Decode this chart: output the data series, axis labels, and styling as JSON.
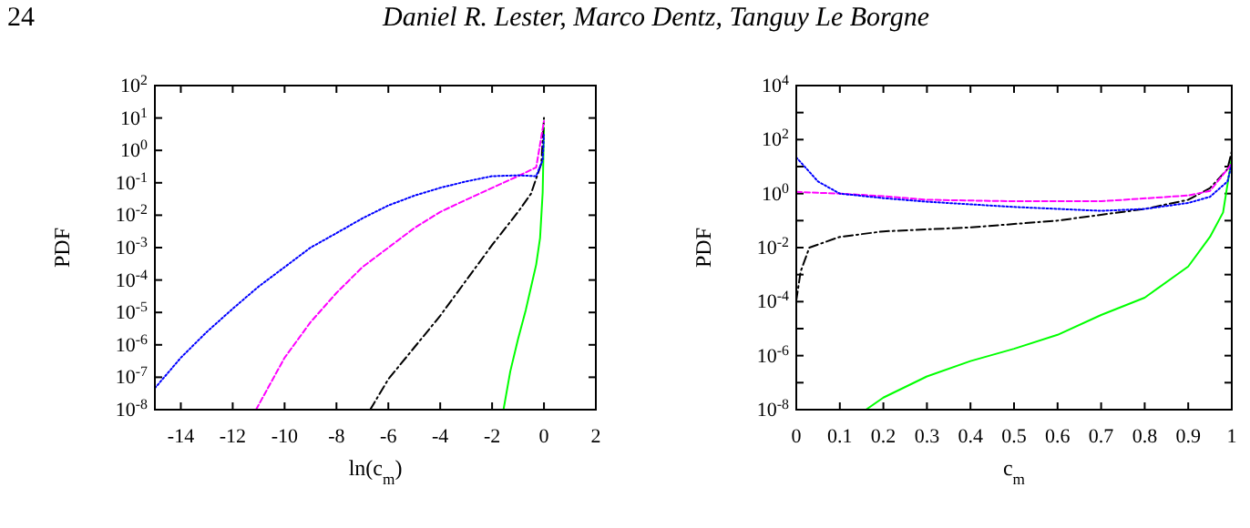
{
  "chart_data": [
    {
      "type": "line",
      "annotations": [
        "24",
        "Daniel R. Lester, Marco Dentz, Tanguy Le Borgne"
      ],
      "xlabel": "ln(c$_{m}$)",
      "ylabel": "PDF",
      "log": "y",
      "xlim": [
        -15,
        2
      ],
      "xticks": [
        -14,
        -12,
        -10,
        -8,
        -6,
        -4,
        -2,
        0,
        2
      ],
      "ylim": [
        1e-08,
        100
      ],
      "yticks": [
        {
          "value": 1e-08,
          "label": "10$^{-8}$"
        },
        {
          "value": 1e-07,
          "label": "10$^{-7}$"
        },
        {
          "value": 1e-06,
          "label": "10$^{-6}$"
        },
        {
          "value": 1e-05,
          "label": "10$^{-5}$"
        },
        {
          "value": 0.0001,
          "label": "10$^{-4}$"
        },
        {
          "value": 0.001,
          "label": "10$^{-3}$"
        },
        {
          "value": 0.01,
          "label": "10$^{-2}$"
        },
        {
          "value": 0.1,
          "label": "10$^{-1}$"
        },
        {
          "value": 1,
          "label": "10$^{0}$"
        },
        {
          "value": 10,
          "label": "10$^{1}$"
        },
        {
          "value": 100,
          "label": "10$^{2}$"
        }
      ],
      "series": [
        {
          "color": "#0000ff",
          "line_style": "dotted",
          "x": [
            -15,
            -14,
            -13,
            -12,
            -11,
            -10,
            -9,
            -8,
            -7,
            -6,
            -5,
            -4,
            -3,
            -2,
            -1,
            -0.3,
            -0.05,
            0
          ],
          "values": [
            4.6e-08,
            4e-07,
            2.5e-06,
            1.3e-05,
            6.3e-05,
            0.00025,
            0.001,
            0.0028,
            0.008,
            0.02,
            0.04,
            0.07,
            0.11,
            0.16,
            0.17,
            0.16,
            0.5,
            3
          ]
        },
        {
          "color": "#ff00ff",
          "line_style": "dashed",
          "x": [
            -11.1,
            -10,
            -9,
            -8,
            -7,
            -6,
            -5,
            -4,
            -3,
            -2,
            -1,
            -0.3,
            0
          ],
          "values": [
            1e-08,
            4e-07,
            5e-06,
            4e-05,
            0.00025,
            0.001,
            0.004,
            0.0126,
            0.03,
            0.07,
            0.16,
            0.3,
            8
          ]
        },
        {
          "color": "#000000",
          "line_style": "dashed",
          "x": [
            -6.7,
            -6,
            -4,
            -2,
            -1,
            -0.5,
            -0.1,
            0
          ],
          "values": [
            1e-08,
            8.7e-08,
            7.9e-06,
            0.0012,
            0.0126,
            0.046,
            0.4,
            10
          ]
        },
        {
          "color": "#00ff00",
          "line_style": "solid",
          "x": [
            -1.56,
            -1.3,
            -1,
            -0.7,
            -0.5,
            -0.3,
            -0.15,
            -0.05,
            0
          ],
          "values": [
            1e-08,
            1.5e-07,
            1.5e-06,
            1.2e-05,
            6e-05,
            0.0003,
            0.002,
            0.05,
            5
          ]
        }
      ]
    },
    {
      "type": "line",
      "xlabel": "c$_{m}$",
      "ylabel": "PDF",
      "log": "y",
      "xlim": [
        0,
        1
      ],
      "xticks": [
        0,
        0.1,
        0.2,
        0.3,
        0.4,
        0.5,
        0.6,
        0.7,
        0.8,
        0.9,
        1
      ],
      "ylim": [
        1e-08,
        10000
      ],
      "yticks": [
        {
          "value": 1e-08,
          "label": "10$^{-8}$"
        },
        {
          "value": 1e-07,
          "label": null
        },
        {
          "value": 1e-06,
          "label": "10$^{-6}$"
        },
        {
          "value": 1e-05,
          "label": null
        },
        {
          "value": 0.0001,
          "label": "10$^{-4}$"
        },
        {
          "value": 0.001,
          "label": null
        },
        {
          "value": 0.01,
          "label": "10$^{-2}$"
        },
        {
          "value": 0.1,
          "label": null
        },
        {
          "value": 1,
          "label": "10$^{0}$"
        },
        {
          "value": 10,
          "label": null
        },
        {
          "value": 100,
          "label": "10$^{2}$"
        },
        {
          "value": 1000,
          "label": null
        },
        {
          "value": 10000,
          "label": "10$^{4}$"
        }
      ],
      "series": [
        {
          "color": "#0000ff",
          "line_style": "dotted",
          "x": [
            0,
            0.05,
            0.1,
            0.2,
            0.3,
            0.5,
            0.7,
            0.8,
            0.9,
            0.95,
            0.99,
            1
          ],
          "values": [
            22,
            2.8,
            1,
            0.68,
            0.5,
            0.32,
            0.23,
            0.27,
            0.45,
            0.76,
            2.8,
            12.6
          ]
        },
        {
          "color": "#ff00ff",
          "line_style": "dashed",
          "x": [
            0,
            0.1,
            0.2,
            0.3,
            0.5,
            0.7,
            0.9,
            0.95,
            1
          ],
          "values": [
            1.15,
            1,
            0.8,
            0.59,
            0.52,
            0.52,
            0.85,
            1.26,
            12.6
          ]
        },
        {
          "color": "#000000",
          "line_style": "dashed",
          "x": [
            0,
            0.01,
            0.03,
            0.1,
            0.2,
            0.4,
            0.6,
            0.8,
            0.9,
            0.95,
            0.99,
            1
          ],
          "values": [
            0.00011,
            0.0013,
            0.01,
            0.025,
            0.04,
            0.056,
            0.1,
            0.27,
            0.59,
            1.6,
            8,
            37
          ]
        },
        {
          "color": "#00ff00",
          "line_style": "solid",
          "x": [
            0.16,
            0.2,
            0.3,
            0.4,
            0.5,
            0.6,
            0.7,
            0.8,
            0.9,
            0.95,
            0.98,
            1
          ],
          "values": [
            1e-08,
            2.8e-08,
            1.7e-07,
            6.3e-07,
            1.8e-06,
            5.9e-06,
            3.2e-05,
            0.00014,
            0.002,
            0.025,
            0.2,
            22
          ]
        }
      ]
    }
  ]
}
